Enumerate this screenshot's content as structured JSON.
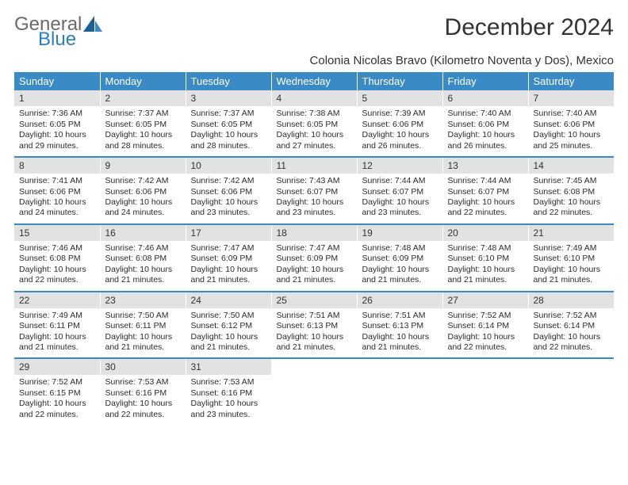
{
  "brand": {
    "part1": "General",
    "part2": "Blue"
  },
  "title": "December 2024",
  "location": "Colonia Nicolas Bravo (Kilometro Noventa y Dos), Mexico",
  "colors": {
    "header_bg": "#3a8ac6",
    "daynum_bg": "#e2e2e2",
    "text": "#333333",
    "brand_gray": "#6a6a6a",
    "brand_blue": "#2a7fbf"
  },
  "day_headers": [
    "Sunday",
    "Monday",
    "Tuesday",
    "Wednesday",
    "Thursday",
    "Friday",
    "Saturday"
  ],
  "weeks": [
    [
      {
        "n": "1",
        "sr": "7:36 AM",
        "ss": "6:05 PM",
        "dl": "10 hours and 29 minutes."
      },
      {
        "n": "2",
        "sr": "7:37 AM",
        "ss": "6:05 PM",
        "dl": "10 hours and 28 minutes."
      },
      {
        "n": "3",
        "sr": "7:37 AM",
        "ss": "6:05 PM",
        "dl": "10 hours and 28 minutes."
      },
      {
        "n": "4",
        "sr": "7:38 AM",
        "ss": "6:05 PM",
        "dl": "10 hours and 27 minutes."
      },
      {
        "n": "5",
        "sr": "7:39 AM",
        "ss": "6:06 PM",
        "dl": "10 hours and 26 minutes."
      },
      {
        "n": "6",
        "sr": "7:40 AM",
        "ss": "6:06 PM",
        "dl": "10 hours and 26 minutes."
      },
      {
        "n": "7",
        "sr": "7:40 AM",
        "ss": "6:06 PM",
        "dl": "10 hours and 25 minutes."
      }
    ],
    [
      {
        "n": "8",
        "sr": "7:41 AM",
        "ss": "6:06 PM",
        "dl": "10 hours and 24 minutes."
      },
      {
        "n": "9",
        "sr": "7:42 AM",
        "ss": "6:06 PM",
        "dl": "10 hours and 24 minutes."
      },
      {
        "n": "10",
        "sr": "7:42 AM",
        "ss": "6:06 PM",
        "dl": "10 hours and 23 minutes."
      },
      {
        "n": "11",
        "sr": "7:43 AM",
        "ss": "6:07 PM",
        "dl": "10 hours and 23 minutes."
      },
      {
        "n": "12",
        "sr": "7:44 AM",
        "ss": "6:07 PM",
        "dl": "10 hours and 23 minutes."
      },
      {
        "n": "13",
        "sr": "7:44 AM",
        "ss": "6:07 PM",
        "dl": "10 hours and 22 minutes."
      },
      {
        "n": "14",
        "sr": "7:45 AM",
        "ss": "6:08 PM",
        "dl": "10 hours and 22 minutes."
      }
    ],
    [
      {
        "n": "15",
        "sr": "7:46 AM",
        "ss": "6:08 PM",
        "dl": "10 hours and 22 minutes."
      },
      {
        "n": "16",
        "sr": "7:46 AM",
        "ss": "6:08 PM",
        "dl": "10 hours and 21 minutes."
      },
      {
        "n": "17",
        "sr": "7:47 AM",
        "ss": "6:09 PM",
        "dl": "10 hours and 21 minutes."
      },
      {
        "n": "18",
        "sr": "7:47 AM",
        "ss": "6:09 PM",
        "dl": "10 hours and 21 minutes."
      },
      {
        "n": "19",
        "sr": "7:48 AM",
        "ss": "6:09 PM",
        "dl": "10 hours and 21 minutes."
      },
      {
        "n": "20",
        "sr": "7:48 AM",
        "ss": "6:10 PM",
        "dl": "10 hours and 21 minutes."
      },
      {
        "n": "21",
        "sr": "7:49 AM",
        "ss": "6:10 PM",
        "dl": "10 hours and 21 minutes."
      }
    ],
    [
      {
        "n": "22",
        "sr": "7:49 AM",
        "ss": "6:11 PM",
        "dl": "10 hours and 21 minutes."
      },
      {
        "n": "23",
        "sr": "7:50 AM",
        "ss": "6:11 PM",
        "dl": "10 hours and 21 minutes."
      },
      {
        "n": "24",
        "sr": "7:50 AM",
        "ss": "6:12 PM",
        "dl": "10 hours and 21 minutes."
      },
      {
        "n": "25",
        "sr": "7:51 AM",
        "ss": "6:13 PM",
        "dl": "10 hours and 21 minutes."
      },
      {
        "n": "26",
        "sr": "7:51 AM",
        "ss": "6:13 PM",
        "dl": "10 hours and 21 minutes."
      },
      {
        "n": "27",
        "sr": "7:52 AM",
        "ss": "6:14 PM",
        "dl": "10 hours and 22 minutes."
      },
      {
        "n": "28",
        "sr": "7:52 AM",
        "ss": "6:14 PM",
        "dl": "10 hours and 22 minutes."
      }
    ],
    [
      {
        "n": "29",
        "sr": "7:52 AM",
        "ss": "6:15 PM",
        "dl": "10 hours and 22 minutes."
      },
      {
        "n": "30",
        "sr": "7:53 AM",
        "ss": "6:16 PM",
        "dl": "10 hours and 22 minutes."
      },
      {
        "n": "31",
        "sr": "7:53 AM",
        "ss": "6:16 PM",
        "dl": "10 hours and 23 minutes."
      },
      null,
      null,
      null,
      null
    ]
  ],
  "labels": {
    "sunrise": "Sunrise: ",
    "sunset": "Sunset: ",
    "daylight": "Daylight: "
  }
}
